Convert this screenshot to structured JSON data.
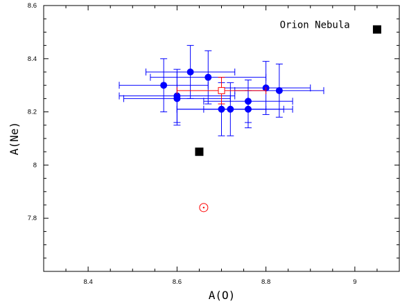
{
  "chart_data": {
    "type": "scatter",
    "xlabel": "A(O)",
    "ylabel": "A(Ne)",
    "xlim": [
      8.3,
      9.1
    ],
    "ylim": [
      7.6,
      8.6
    ],
    "x_ticks": [
      8.4,
      8.6,
      8.8,
      9.0
    ],
    "x_tick_labels": [
      "8.4",
      "8.6",
      "8.8",
      "9"
    ],
    "y_ticks": [
      7.8,
      8.0,
      8.2,
      8.4,
      8.6
    ],
    "y_tick_labels": [
      "7.8",
      "8",
      "8.2",
      "8.4",
      "8.6"
    ],
    "series": [
      {
        "marker": "filled-circle",
        "color": "#0000ff",
        "points": [
          {
            "x": 8.57,
            "y": 8.3,
            "xerr": 0.1,
            "yerr": 0.1
          },
          {
            "x": 8.6,
            "y": 8.26,
            "xerr": 0.13,
            "yerr": 0.1
          },
          {
            "x": 8.6,
            "y": 8.25,
            "xerr": 0.12,
            "yerr": 0.1
          },
          {
            "x": 8.63,
            "y": 8.35,
            "xerr": 0.1,
            "yerr": 0.1
          },
          {
            "x": 8.67,
            "y": 8.33,
            "xerr": 0.13,
            "yerr": 0.1
          },
          {
            "x": 8.7,
            "y": 8.21,
            "xerr": 0.1,
            "yerr": 0.1
          },
          {
            "x": 8.72,
            "y": 8.21,
            "xerr": 0.12,
            "yerr": 0.1
          },
          {
            "x": 8.76,
            "y": 8.24,
            "xerr": 0.1,
            "yerr": 0.08
          },
          {
            "x": 8.76,
            "y": 8.21,
            "xerr": 0.1,
            "yerr": 0.07
          },
          {
            "x": 8.8,
            "y": 8.29,
            "xerr": 0.1,
            "yerr": 0.1
          },
          {
            "x": 8.83,
            "y": 8.28,
            "xerr": 0.1,
            "yerr": 0.1
          }
        ]
      },
      {
        "marker": "open-square",
        "color": "#ff0000",
        "points": [
          {
            "x": 8.7,
            "y": 8.28,
            "xerr": 0.1,
            "yerr": 0.05
          }
        ]
      },
      {
        "marker": "filled-square",
        "color": "#000000",
        "points": [
          {
            "x": 8.65,
            "y": 8.05
          },
          {
            "x": 9.05,
            "y": 8.51
          }
        ]
      },
      {
        "marker": "sun-symbol",
        "color": "#ff0000",
        "points": [
          {
            "x": 8.66,
            "y": 7.84
          }
        ]
      }
    ],
    "annotations": [
      {
        "text": "Orion Nebula",
        "x": 8.91,
        "y": 8.515
      }
    ],
    "grid": false
  }
}
